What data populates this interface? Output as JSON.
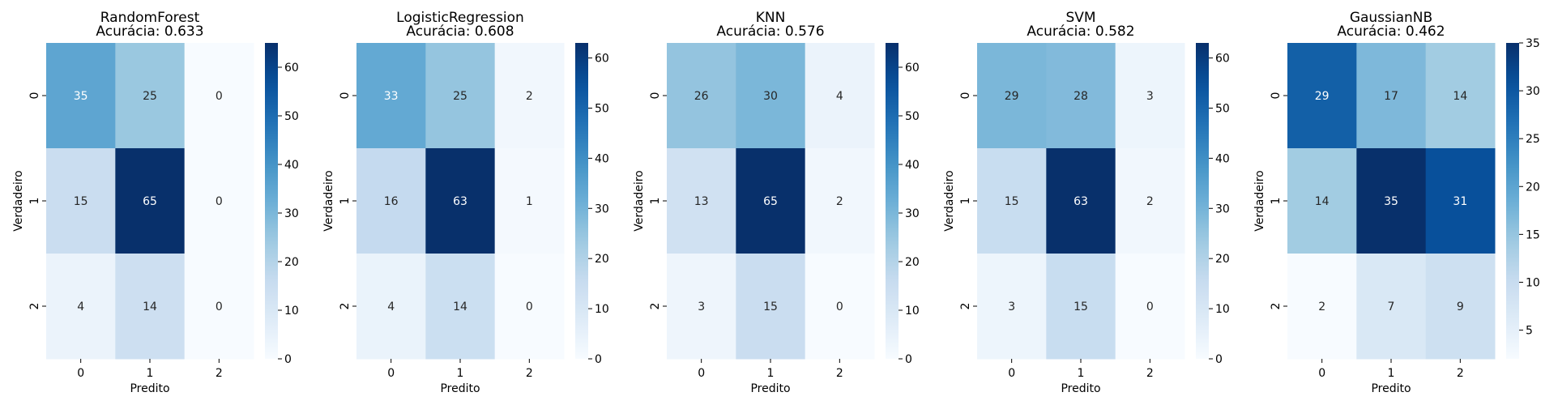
{
  "chart_data": [
    {
      "type": "heatmap",
      "title": "RandomForest",
      "subtitle": "Acurácia: 0.633",
      "xlabel": "Predito",
      "ylabel": "Verdadeiro",
      "x_categories": [
        "0",
        "1",
        "2"
      ],
      "y_categories": [
        "0",
        "1",
        "2"
      ],
      "values": [
        [
          35,
          25,
          0
        ],
        [
          15,
          65,
          0
        ],
        [
          4,
          14,
          0
        ]
      ],
      "colorbar_range": [
        0,
        65
      ],
      "colorbar_ticks": [
        0,
        10,
        20,
        30,
        40,
        50,
        60
      ],
      "colormap": "Blues"
    },
    {
      "type": "heatmap",
      "title": "LogisticRegression",
      "subtitle": "Acurácia: 0.608",
      "xlabel": "Predito",
      "ylabel": "Verdadeiro",
      "x_categories": [
        "0",
        "1",
        "2"
      ],
      "y_categories": [
        "0",
        "1",
        "2"
      ],
      "values": [
        [
          33,
          25,
          2
        ],
        [
          16,
          63,
          1
        ],
        [
          4,
          14,
          0
        ]
      ],
      "colorbar_range": [
        0,
        63
      ],
      "colorbar_ticks": [
        0,
        10,
        20,
        30,
        40,
        50,
        60
      ],
      "colormap": "Blues"
    },
    {
      "type": "heatmap",
      "title": "KNN",
      "subtitle": "Acurácia: 0.576",
      "xlabel": "Predito",
      "ylabel": "Verdadeiro",
      "x_categories": [
        "0",
        "1",
        "2"
      ],
      "y_categories": [
        "0",
        "1",
        "2"
      ],
      "values": [
        [
          26,
          30,
          4
        ],
        [
          13,
          65,
          2
        ],
        [
          3,
          15,
          0
        ]
      ],
      "colorbar_range": [
        0,
        65
      ],
      "colorbar_ticks": [
        0,
        10,
        20,
        30,
        40,
        50,
        60
      ],
      "colormap": "Blues"
    },
    {
      "type": "heatmap",
      "title": "SVM",
      "subtitle": "Acurácia: 0.582",
      "xlabel": "Predito",
      "ylabel": "Verdadeiro",
      "x_categories": [
        "0",
        "1",
        "2"
      ],
      "y_categories": [
        "0",
        "1",
        "2"
      ],
      "values": [
        [
          29,
          28,
          3
        ],
        [
          15,
          63,
          2
        ],
        [
          3,
          15,
          0
        ]
      ],
      "colorbar_range": [
        0,
        63
      ],
      "colorbar_ticks": [
        0,
        10,
        20,
        30,
        40,
        50,
        60
      ],
      "colormap": "Blues"
    },
    {
      "type": "heatmap",
      "title": "GaussianNB",
      "subtitle": "Acurácia: 0.462",
      "xlabel": "Predito",
      "ylabel": "Verdadeiro",
      "x_categories": [
        "0",
        "1",
        "2"
      ],
      "y_categories": [
        "0",
        "1",
        "2"
      ],
      "values": [
        [
          29,
          17,
          14
        ],
        [
          14,
          35,
          31
        ],
        [
          2,
          7,
          9
        ]
      ],
      "colorbar_range": [
        2,
        35
      ],
      "colorbar_ticks": [
        5,
        10,
        15,
        20,
        25,
        30,
        35
      ],
      "colormap": "Blues"
    }
  ]
}
